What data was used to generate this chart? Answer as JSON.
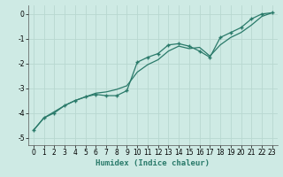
{
  "title": "",
  "xlabel": "Humidex (Indice chaleur)",
  "background_color": "#ceeae4",
  "grid_color": "#b8d8d0",
  "line_color": "#2a7a6a",
  "xlim": [
    -0.5,
    23.5
  ],
  "ylim": [
    -5.3,
    0.35
  ],
  "yticks": [
    0,
    -1,
    -2,
    -3,
    -4,
    -5
  ],
  "xticks": [
    0,
    1,
    2,
    3,
    4,
    5,
    6,
    7,
    8,
    9,
    10,
    11,
    12,
    13,
    14,
    15,
    16,
    17,
    18,
    19,
    20,
    21,
    22,
    23
  ],
  "line1_x": [
    0,
    1,
    2,
    3,
    4,
    5,
    6,
    7,
    8,
    9,
    10,
    11,
    12,
    13,
    14,
    15,
    16,
    17,
    18,
    19,
    20,
    21,
    22,
    23
  ],
  "line1_y": [
    -4.7,
    -4.2,
    -4.0,
    -3.7,
    -3.5,
    -3.35,
    -3.25,
    -3.3,
    -3.3,
    -3.1,
    -1.95,
    -1.75,
    -1.6,
    -1.25,
    -1.2,
    -1.3,
    -1.5,
    -1.75,
    -0.95,
    -0.75,
    -0.55,
    -0.2,
    0.0,
    0.05
  ],
  "line2_x": [
    0,
    1,
    2,
    3,
    4,
    5,
    6,
    7,
    8,
    9,
    10,
    11,
    12,
    13,
    14,
    15,
    16,
    17,
    18,
    19,
    20,
    21,
    22,
    23
  ],
  "line2_y": [
    -4.7,
    -4.2,
    -3.95,
    -3.7,
    -3.5,
    -3.35,
    -3.2,
    -3.15,
    -3.05,
    -2.9,
    -2.35,
    -2.05,
    -1.85,
    -1.5,
    -1.3,
    -1.4,
    -1.35,
    -1.7,
    -1.25,
    -0.95,
    -0.75,
    -0.45,
    -0.1,
    0.05
  ],
  "xlabel_fontsize": 6.5,
  "tick_fontsize": 5.5
}
